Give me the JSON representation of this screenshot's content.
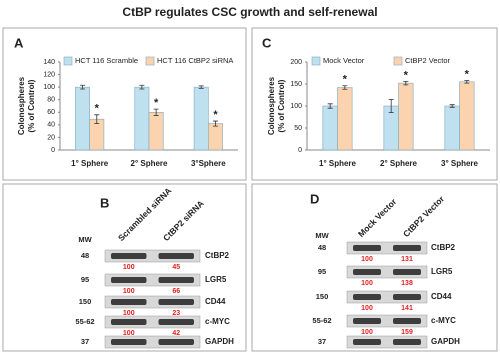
{
  "title": "CtBP regulates CSC growth and self-renewal",
  "chart_data": [
    {
      "type": "bar",
      "panel": "A",
      "ylabel": [
        "Colonospheres",
        "(% of Control)"
      ],
      "categories": [
        "1° Sphere",
        "2° Sphere",
        "3°Sphere"
      ],
      "ylim": [
        0,
        140
      ],
      "yticks": [
        0,
        20,
        40,
        60,
        80,
        100,
        120,
        140
      ],
      "grid": false,
      "series": [
        {
          "name": "HCT 116 Scramble",
          "color": "#bfe0ef",
          "values": [
            100,
            100,
            100
          ],
          "errors": [
            3,
            3,
            2
          ]
        },
        {
          "name": "HCT 116 CtBP2 siRNA",
          "color": "#fbd3ae",
          "values": [
            49,
            60,
            42
          ],
          "errors": [
            7,
            5,
            4
          ]
        }
      ],
      "annotations": [
        "*",
        "*",
        "*"
      ]
    },
    {
      "type": "bar",
      "panel": "C",
      "ylabel": [
        "Colonospheres",
        "(% of Control)"
      ],
      "categories": [
        "1° Sphere",
        "2° Sphere",
        "3° Sphere"
      ],
      "ylim": [
        0,
        200
      ],
      "yticks": [
        0,
        50,
        100,
        150,
        200
      ],
      "grid": false,
      "series": [
        {
          "name": "Mock Vector",
          "color": "#bfe0ef",
          "values": [
            100,
            100,
            100
          ],
          "errors": [
            5,
            15,
            3
          ]
        },
        {
          "name": "CtBP2 Vector",
          "color": "#fbd3ae",
          "values": [
            142,
            152,
            155
          ],
          "errors": [
            4,
            4,
            3
          ]
        }
      ],
      "annotations": [
        "*",
        "*",
        "*"
      ]
    }
  ],
  "blots": [
    {
      "panel": "B",
      "mw_header": "MW",
      "columns": [
        "Scrambled siRNA",
        "CtBP2 siRNA"
      ],
      "rows": [
        {
          "mw": "48",
          "protein": "CtBP2",
          "quant": [
            "100",
            "45"
          ]
        },
        {
          "mw": "95",
          "protein": "LGR5",
          "quant": [
            "100",
            "66"
          ]
        },
        {
          "mw": "150",
          "protein": "CD44",
          "quant": [
            "100",
            "23"
          ]
        },
        {
          "mw": "55-62",
          "protein": "c-MYC",
          "quant": [
            "100",
            "42"
          ]
        },
        {
          "mw": "37",
          "protein": "GAPDH",
          "quant": []
        }
      ]
    },
    {
      "panel": "D",
      "mw_header": "MW",
      "columns": [
        "Mock Vector",
        "CtBP2 Vector"
      ],
      "rows": [
        {
          "mw": "48",
          "protein": "CtBP2",
          "quant": [
            "100",
            "131"
          ]
        },
        {
          "mw": "95",
          "protein": "LGR5",
          "quant": [
            "100",
            "138"
          ]
        },
        {
          "mw": "150",
          "protein": "CD44",
          "quant": [
            "100",
            "141"
          ]
        },
        {
          "mw": "55-62",
          "protein": "c-MYC",
          "quant": [
            "100",
            "159"
          ]
        },
        {
          "mw": "37",
          "protein": "GAPDH",
          "quant": []
        }
      ]
    }
  ]
}
